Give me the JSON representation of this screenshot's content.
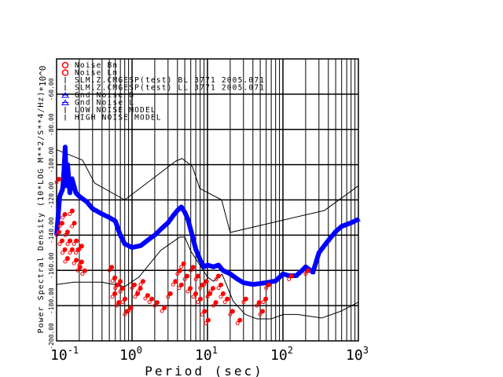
{
  "chart_data": {
    "type": "scatter",
    "title": "",
    "xlabel": "Period (sec)",
    "ylabel": "Power Spectral Density (10*LOG M**2/S**4/Hz)",
    "yscale_label": "*10^0",
    "xscale": "log",
    "xlim": [
      0.1,
      1000
    ],
    "ylim": [
      -200,
      -40
    ],
    "grid": true,
    "legend_placement": "top-left",
    "x_ticks": [
      {
        "v": 0.1,
        "base": "10",
        "exp": "-1"
      },
      {
        "v": 1,
        "base": "10",
        "exp": "0"
      },
      {
        "v": 10,
        "base": "10",
        "exp": "1"
      },
      {
        "v": 100,
        "base": "10",
        "exp": "2"
      },
      {
        "v": 1000,
        "base": "10",
        "exp": "3"
      }
    ],
    "y_ticks": [
      {
        "v": -60,
        "label": "-60.00"
      },
      {
        "v": -80,
        "label": "-80.00"
      },
      {
        "v": -100,
        "label": "-100.00"
      },
      {
        "v": -120,
        "label": "-120.00"
      },
      {
        "v": -140,
        "label": "-140.00"
      },
      {
        "v": -160,
        "label": "-160.00"
      },
      {
        "v": -180,
        "label": "-180.00"
      },
      {
        "v": -200,
        "label": "-200.00"
      }
    ],
    "legend": [
      {
        "label": "Noise Bn",
        "marker": "circle",
        "color": "#ff0000"
      },
      {
        "label": "Noise Ln",
        "marker": "circle",
        "color": "#ff0000"
      },
      {
        "label": "SLM.Z.CMGESP(test) BL 3771 2005.071",
        "marker": "line",
        "color": "#000000"
      },
      {
        "label": "SLM.Z.CMGESP(test) LL 3771 2005.071",
        "marker": "line",
        "color": "#000000"
      },
      {
        "label": "Gnd Noise B",
        "marker": "triangle",
        "color": "#0000ff"
      },
      {
        "label": "Gnd Noise L",
        "marker": "triangle",
        "color": "#0000ff"
      },
      {
        "label": "LOW NOISE MODEL",
        "marker": "line",
        "color": "#000000"
      },
      {
        "label": "HIGH NOISE MODEL",
        "marker": "line",
        "color": "#000000"
      }
    ],
    "series": [
      {
        "name": "HIGH NOISE MODEL",
        "type": "line",
        "color": "#000000",
        "x": [
          0.1,
          0.22,
          0.32,
          0.8,
          3.8,
          4.6,
          6.3,
          7.9,
          15.4,
          20,
          354.8,
          1000
        ],
        "y": [
          -91.5,
          -97.4,
          -110.5,
          -120,
          -98,
          -96.5,
          -101,
          -113.5,
          -120,
          -138.5,
          -126,
          -112
        ]
      },
      {
        "name": "LOW NOISE MODEL",
        "type": "line",
        "color": "#000000",
        "x": [
          0.1,
          0.17,
          0.4,
          0.8,
          1.24,
          2.4,
          4.3,
          5,
          6,
          10,
          12,
          15.6,
          21.9,
          31.6,
          45,
          70,
          101,
          154,
          328,
          600,
          1000
        ],
        "y": [
          -168,
          -166.7,
          -166.7,
          -169.2,
          -163.7,
          -148.6,
          -141.1,
          -141.1,
          -149,
          -163.8,
          -166.2,
          -162.1,
          -177.5,
          -185,
          -187.5,
          -187.5,
          -185,
          -185,
          -187,
          -183,
          -178
        ]
      },
      {
        "name": "Gnd Noise",
        "type": "line",
        "color": "#0000ff",
        "x": [
          0.1,
          0.11,
          0.12,
          0.125,
          0.13,
          0.135,
          0.14,
          0.15,
          0.16,
          0.17,
          0.18,
          0.2,
          0.25,
          0.3,
          0.4,
          0.5,
          0.6,
          0.7,
          0.8,
          1.0,
          1.3,
          1.6,
          2,
          2.5,
          3,
          3.5,
          4,
          4.5,
          5,
          5.5,
          6,
          7,
          8,
          9,
          10,
          12,
          14,
          16,
          20,
          25,
          30,
          40,
          60,
          80,
          100,
          120,
          150,
          180,
          200,
          250,
          300,
          400,
          500,
          600,
          800,
          1000
        ],
        "y": [
          -140,
          -118,
          -114,
          -104,
          -90,
          -112,
          -100,
          -116,
          -108,
          -112,
          -116,
          -118,
          -121,
          -125,
          -128,
          -130,
          -132,
          -140,
          -145,
          -147,
          -146,
          -143,
          -140,
          -136,
          -133,
          -129,
          -126,
          -124,
          -127,
          -131,
          -137,
          -148,
          -154,
          -158,
          -157,
          -158,
          -157,
          -160,
          -162,
          -165,
          -167,
          -168,
          -167,
          -166,
          -162,
          -163,
          -163,
          -160,
          -158,
          -161,
          -150,
          -143,
          -138,
          -135,
          -133,
          -131
        ]
      },
      {
        "name": "Noise",
        "type": "scatter",
        "color": "#ff0000",
        "x": [
          0.1,
          0.1,
          0.11,
          0.11,
          0.12,
          0.12,
          0.13,
          0.13,
          0.14,
          0.15,
          0.15,
          0.16,
          0.17,
          0.17,
          0.18,
          0.19,
          0.2,
          0.2,
          0.22,
          0.5,
          0.55,
          0.55,
          0.6,
          0.62,
          0.65,
          0.7,
          0.75,
          0.8,
          0.9,
          1.0,
          1.1,
          1.2,
          1.3,
          1.5,
          1.7,
          2.0,
          2.5,
          3,
          3.5,
          4,
          4.2,
          4.5,
          5,
          5.5,
          6,
          6.5,
          7,
          7.5,
          8,
          8.5,
          9,
          9.5,
          10,
          11,
          12,
          13,
          14,
          15,
          17,
          20,
          25,
          30,
          45,
          50,
          55,
          60,
          120,
          200
        ],
        "y": [
          -110,
          -140,
          -145,
          -135,
          -150,
          -130,
          -140,
          -155,
          -145,
          -128,
          -150,
          -135,
          -145,
          -156,
          -150,
          -160,
          -148,
          -157,
          -162,
          -160,
          -166,
          -175,
          -170,
          -180,
          -168,
          -172,
          -178,
          -185,
          -183,
          -170,
          -175,
          -172,
          -168,
          -176,
          -178,
          -180,
          -183,
          -175,
          -168,
          -162,
          -170,
          -158,
          -165,
          -172,
          -160,
          -175,
          -165,
          -178,
          -170,
          -185,
          -168,
          -190,
          -175,
          -172,
          -180,
          -165,
          -170,
          -175,
          -178,
          -185,
          -190,
          -178,
          -180,
          -185,
          -178,
          -170,
          -165,
          -162
        ]
      }
    ]
  }
}
